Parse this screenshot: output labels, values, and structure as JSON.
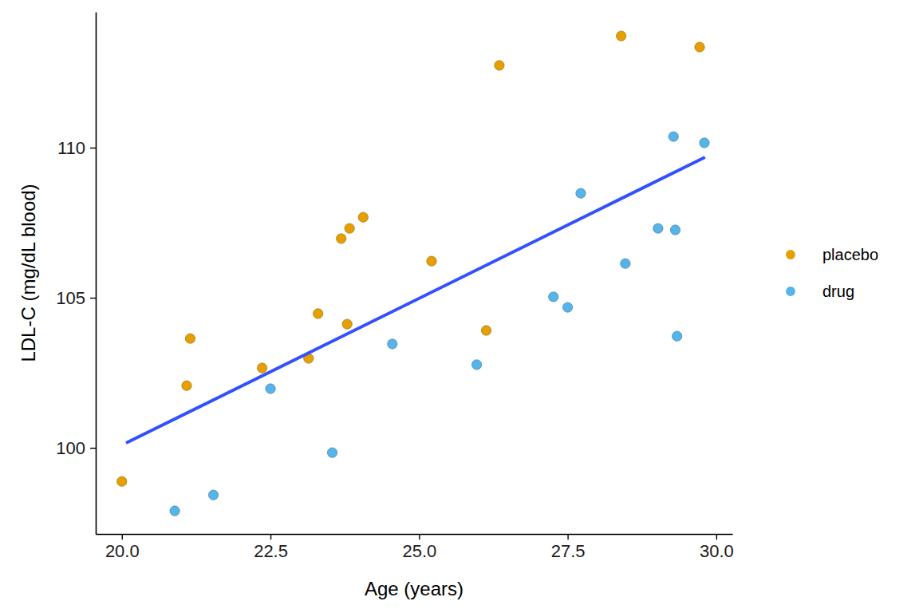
{
  "chart_data": {
    "type": "scatter",
    "x_label": "Age (years)",
    "y_label": "LDL-C (mg/dL blood)",
    "xlim": [
      19.56,
      30.27
    ],
    "ylim": [
      97.13,
      114.52
    ],
    "xticks": [
      {
        "value": 20,
        "label": "20.0"
      },
      22.5,
      {
        "value": 25,
        "label": "25.0"
      },
      27.5,
      {
        "value": 30,
        "label": "30.0"
      }
    ],
    "yticks": [
      100,
      105,
      110
    ],
    "grid": false,
    "legend": "right",
    "series": [
      {
        "name": "placebo",
        "color": "#E69F00",
        "marker": "circle",
        "x": [
          20.0,
          21.09,
          21.15,
          22.36,
          23.14,
          23.3,
          23.69,
          23.79,
          23.83,
          24.06,
          25.21,
          26.13,
          26.35,
          28.4,
          29.72
        ],
        "values": [
          98.88,
          102.07,
          103.64,
          102.66,
          102.98,
          104.47,
          106.97,
          104.12,
          107.31,
          107.68,
          106.22,
          103.91,
          112.74,
          113.72,
          113.35
        ]
      },
      {
        "name": "drug",
        "color": "#56B4E9",
        "marker": "circle",
        "x": [
          20.89,
          21.54,
          22.5,
          23.54,
          24.55,
          25.97,
          27.26,
          27.5,
          27.72,
          28.47,
          29.02,
          29.28,
          29.31,
          29.34,
          29.8
        ],
        "values": [
          97.9,
          98.43,
          101.97,
          99.84,
          103.46,
          102.77,
          105.03,
          104.68,
          108.48,
          106.14,
          107.31,
          110.37,
          107.26,
          103.72,
          110.16
        ]
      },
      {
        "type": "line",
        "color": "#3350FF",
        "line_style": "solid",
        "x": [
          20.07,
          29.81
        ],
        "values": [
          100.16,
          109.68
        ]
      }
    ]
  }
}
